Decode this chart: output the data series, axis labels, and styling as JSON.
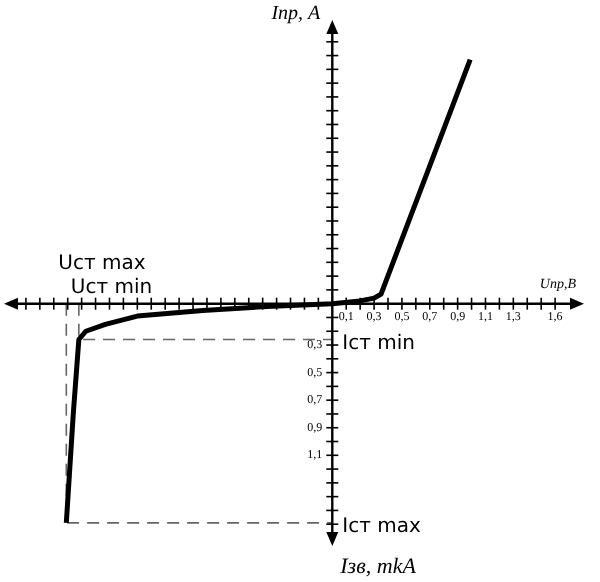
{
  "chart_data": {
    "type": "line",
    "xlabel": "Uпр,B",
    "ylabel": "Iпр, A",
    "x": [
      -1.91,
      -1.86,
      -1.82,
      -1.77,
      -1.63,
      -1.4,
      -0.93,
      -0.47,
      0,
      0.2,
      0.3,
      0.35,
      0.99
    ],
    "series": [
      {
        "color": "#000000",
        "values": [
          -1.59,
          -0.8,
          -0.26,
          -0.2,
          -0.15,
          -0.09,
          -0.05,
          -0.02,
          0,
          0.02,
          0.04,
          0.07,
          1.77
        ]
      },
      {
        "color": "#666666",
        "line_style": "dashed",
        "x": [
          -1.91,
          -1.91,
          0
        ],
        "values": [
          0,
          -1.59,
          -1.59
        ]
      },
      {
        "color": "#666666",
        "line_style": "dashed",
        "x": [
          -1.82,
          -1.82,
          0
        ],
        "values": [
          0,
          -0.26,
          -0.26
        ]
      }
    ],
    "xlim": [
      -2.3,
      1.75
    ],
    "xticks": [
      {
        "value": -2.2,
        "label": null
      },
      {
        "value": -2.1,
        "label": null
      },
      {
        "value": -2.0,
        "label": null
      },
      {
        "value": -1.9,
        "label": null
      },
      {
        "value": -1.8,
        "label": null
      },
      {
        "value": -1.7,
        "label": null
      },
      {
        "value": -1.6,
        "label": null
      },
      {
        "value": -1.5,
        "label": null
      },
      {
        "value": -1.4,
        "label": null
      },
      {
        "value": -1.3,
        "label": null
      },
      {
        "value": -1.2,
        "label": null
      },
      {
        "value": -1.1,
        "label": null
      },
      {
        "value": -1.0,
        "label": null
      },
      {
        "value": -0.9,
        "label": null
      },
      {
        "value": -0.8,
        "label": null
      },
      {
        "value": -0.7,
        "label": null
      },
      {
        "value": -0.6,
        "label": null
      },
      {
        "value": -0.5,
        "label": null
      },
      {
        "value": -0.4,
        "label": null
      },
      {
        "value": -0.3,
        "label": null
      },
      {
        "value": -0.2,
        "label": null
      },
      {
        "value": -0.1,
        "label": null
      },
      {
        "value": 0.1,
        "label": "0,1"
      },
      {
        "value": 0.2,
        "label": null
      },
      {
        "value": 0.3,
        "label": "0,3"
      },
      {
        "value": 0.4,
        "label": null
      },
      {
        "value": 0.5,
        "label": "0,5"
      },
      {
        "value": 0.6,
        "label": null
      },
      {
        "value": 0.7,
        "label": "0,7"
      },
      {
        "value": 0.8,
        "label": null
      },
      {
        "value": 0.9,
        "label": "0,9"
      },
      {
        "value": 1.0,
        "label": null
      },
      {
        "value": 1.1,
        "label": "1,1"
      },
      {
        "value": 1.2,
        "label": null
      },
      {
        "value": 1.3,
        "label": "1,3"
      },
      {
        "value": 1.4,
        "label": null
      },
      {
        "value": 1.5,
        "label": null
      },
      {
        "value": 1.6,
        "label": "1,6"
      }
    ],
    "ylim": [
      -1.7,
      2.0
    ],
    "yticks": [
      {
        "value": -1.6,
        "label": null
      },
      {
        "value": -1.5,
        "label": null
      },
      {
        "value": -1.4,
        "label": null
      },
      {
        "value": -1.3,
        "label": null
      },
      {
        "value": -1.2,
        "label": null
      },
      {
        "value": -1.1,
        "label": "1,1"
      },
      {
        "value": -1.0,
        "label": null
      },
      {
        "value": -0.9,
        "label": "0,9"
      },
      {
        "value": -0.8,
        "label": null
      },
      {
        "value": -0.7,
        "label": "0,7"
      },
      {
        "value": -0.6,
        "label": null
      },
      {
        "value": -0.5,
        "label": "0,5"
      },
      {
        "value": -0.4,
        "label": null
      },
      {
        "value": -0.3,
        "label": "0,3"
      },
      {
        "value": -0.2,
        "label": null
      },
      {
        "value": -0.1,
        "label": null
      },
      {
        "value": 0.1,
        "label": null
      },
      {
        "value": 0.2,
        "label": null
      },
      {
        "value": 0.3,
        "label": null
      },
      {
        "value": 0.4,
        "label": null
      },
      {
        "value": 0.5,
        "label": null
      },
      {
        "value": 0.6,
        "label": null
      },
      {
        "value": 0.7,
        "label": null
      },
      {
        "value": 0.8,
        "label": null
      },
      {
        "value": 0.9,
        "label": null
      },
      {
        "value": 1.0,
        "label": null
      },
      {
        "value": 1.1,
        "label": null
      },
      {
        "value": 1.2,
        "label": null
      },
      {
        "value": 1.3,
        "label": null
      },
      {
        "value": 1.4,
        "label": null
      },
      {
        "value": 1.5,
        "label": null
      },
      {
        "value": 1.6,
        "label": null
      },
      {
        "value": 1.7,
        "label": null
      },
      {
        "value": 1.8,
        "label": null
      },
      {
        "value": 1.9,
        "label": null
      }
    ],
    "annotations": [
      {
        "text": "Uст max",
        "x": -1.91,
        "y": 0
      },
      {
        "text": "Iст max",
        "x": 0,
        "y": -1.59
      },
      {
        "text": "Uст min",
        "x": -1.82,
        "y": 0
      },
      {
        "text": "Iст min",
        "x": 0,
        "y": -0.26
      },
      "Iзв, mkA"
    ],
    "grid": false,
    "legend": false,
    "marker": "none",
    "line_style": "solid"
  }
}
